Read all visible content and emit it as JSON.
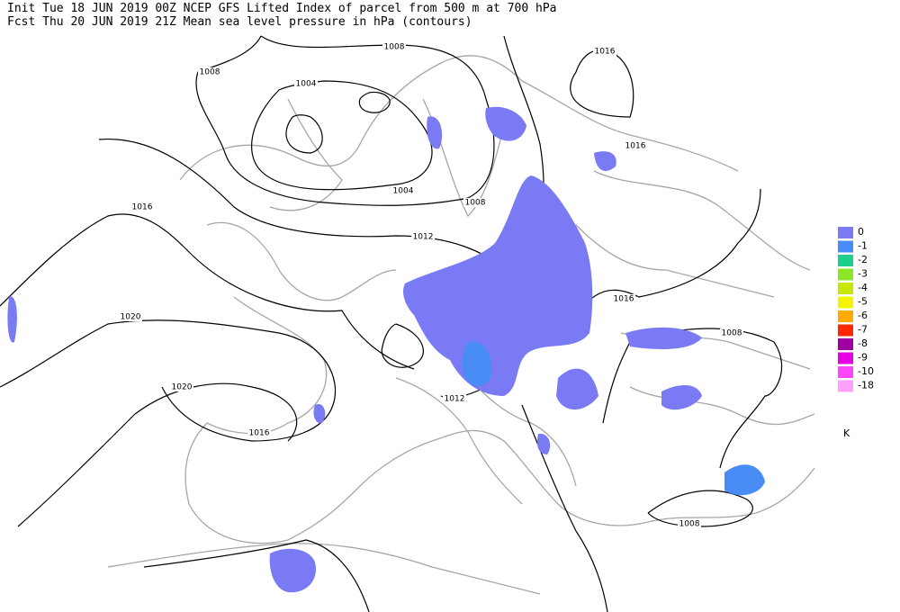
{
  "header": {
    "line1": "Init  Tue 18 JUN 2019 00Z   NCEP GFS Lifted Index of parcel from 500 m at 700 hPa",
    "line2": "Fcst Thu 20 JUN 2019 21Z   Mean sea level pressure in hPa (contours)"
  },
  "contour_labels": [
    "1008",
    "1008",
    "1004",
    "1016",
    "1016",
    "1004",
    "1008",
    "1016",
    "1012",
    "1016",
    "1020",
    "1008",
    "1020",
    "1012",
    "1016",
    "1008"
  ],
  "legend": {
    "unit": "K",
    "items": [
      {
        "label": "0",
        "color": "#7a7af5"
      },
      {
        "label": "-1",
        "color": "#4a8cf5"
      },
      {
        "label": "-2",
        "color": "#1ecf8c"
      },
      {
        "label": "-3",
        "color": "#8ce628"
      },
      {
        "label": "-4",
        "color": "#c8e600"
      },
      {
        "label": "-5",
        "color": "#f5f500"
      },
      {
        "label": "-6",
        "color": "#ffaa00"
      },
      {
        "label": "-7",
        "color": "#ff2800"
      },
      {
        "label": "-8",
        "color": "#a000a0"
      },
      {
        "label": "-9",
        "color": "#e600e6"
      },
      {
        "label": "-10",
        "color": "#ff46ff"
      },
      {
        "label": "-18",
        "color": "#ffa0ff"
      }
    ]
  }
}
